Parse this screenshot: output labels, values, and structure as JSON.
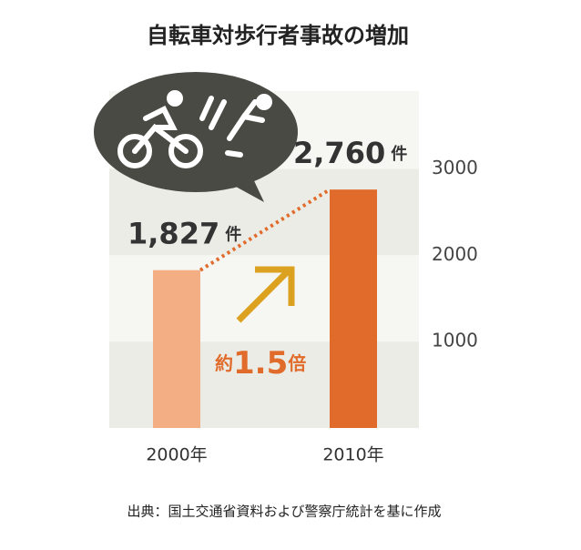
{
  "chart_data": {
    "type": "bar",
    "title": "自転車対歩行者事故の増加",
    "categories": [
      "2000年",
      "2010年"
    ],
    "values": [
      1827,
      2760
    ],
    "value_labels": [
      "1,827",
      "2,760"
    ],
    "unit": "件",
    "colors": [
      "#f4ae84",
      "#e06b2a"
    ],
    "ylim": [
      0,
      3900
    ],
    "yticks": [
      1000,
      2000,
      3000
    ],
    "band_colors": [
      "#ecece6",
      "#f6f6f3"
    ],
    "annotation": [
      "約",
      "1.5",
      "倍"
    ],
    "source": "出典：国土交通省資料および警察庁統計を基に作成"
  }
}
